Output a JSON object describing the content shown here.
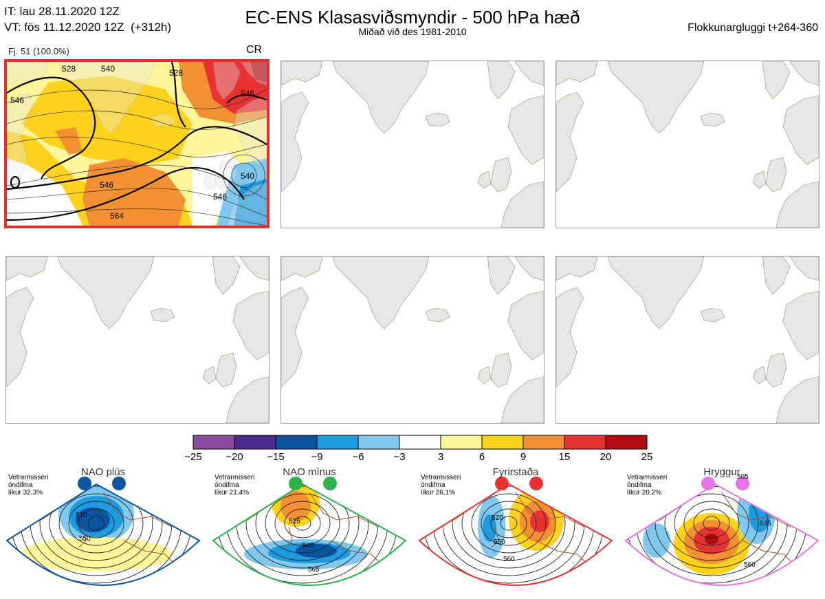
{
  "header": {
    "it_line": "IT: lau 28.11.2020 12Z",
    "vt_line": "VT: fös 11.12.2020 12Z  (+312h)",
    "title": "EC-ENS Klasasviðsmyndir - 500 hPa hæð",
    "subtitle": "Miðað við des 1981-2010",
    "window": "Flokkunargluggi t+264-360"
  },
  "panel1": {
    "label": "Fj. 51 (100.0%)",
    "regime_code": "CR",
    "contour_labels": [
      "528",
      "540",
      "528",
      "546",
      "546",
      "546",
      "564",
      "540",
      "546"
    ]
  },
  "colorbar": {
    "colors": [
      "#8e4a9e",
      "#4b2c8e",
      "#0b54a0",
      "#1e9be0",
      "#80c8ee",
      "#ffffff",
      "#fff59a",
      "#fdd21c",
      "#f39033",
      "#e83232",
      "#b30c10"
    ],
    "ticks": [
      "−25",
      "−20",
      "−15",
      "−9",
      "−6",
      "−3",
      "3",
      "6",
      "9",
      "15",
      "20",
      "25"
    ]
  },
  "regimes": [
    {
      "name": "NAO plús",
      "season": "Vetrarmisseri",
      "anomaly": "óndifma",
      "prob": "líkur 32,3%",
      "color": "#0b54a0",
      "labels": [
        "510",
        "550"
      ]
    },
    {
      "name": "NAO mínus",
      "season": "Vetrarmisseri",
      "anomaly": "óndifma",
      "prob": "líkur 21,4%",
      "color": "#2bb34a",
      "labels": [
        "525",
        "545",
        "565"
      ]
    },
    {
      "name": "Fyrirstaða",
      "season": "Vetrarmisseri",
      "anomaly": "óndifma",
      "prob": "líkur 26,1%",
      "color": "#e83232",
      "labels": [
        "520",
        "550",
        "560"
      ]
    },
    {
      "name": "Hryggur",
      "season": "Vetrarmisseri",
      "anomaly": "óndifma",
      "prob": "líkur 20,2%",
      "color": "#e873e8",
      "labels": [
        "505",
        "535",
        "560"
      ]
    }
  ]
}
